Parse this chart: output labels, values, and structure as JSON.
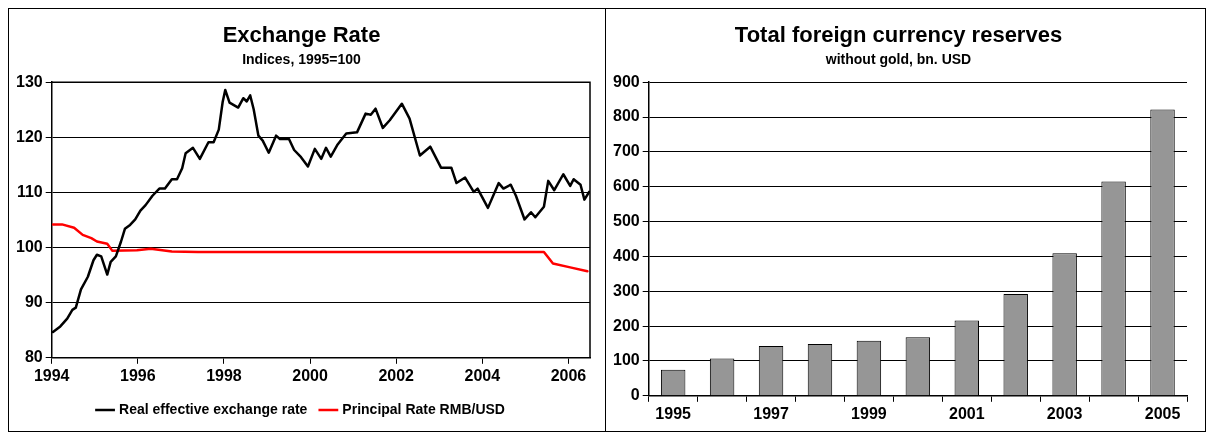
{
  "chart_data": [
    {
      "type": "line",
      "title": "Exchange Rate",
      "subtitle": "Indices, 1995=100",
      "xlim": [
        1994,
        2006.5
      ],
      "xticks": [
        1994,
        1996,
        1998,
        2000,
        2002,
        2004,
        2006
      ],
      "ylim": [
        80,
        130
      ],
      "yticks": [
        80,
        90,
        100,
        110,
        120,
        130
      ],
      "grid": "y",
      "legend": "bottom",
      "marker": "none",
      "line_style": "solid",
      "series": [
        {
          "name": "Real effective exchange rate",
          "color": "#000000",
          "x": [
            1994.03,
            1994.2,
            1994.36,
            1994.48,
            1994.56,
            1994.68,
            1994.84,
            1994.97,
            1995.05,
            1995.15,
            1995.29,
            1995.37,
            1995.49,
            1995.61,
            1995.7,
            1995.82,
            1995.94,
            1996.06,
            1996.18,
            1996.34,
            1996.5,
            1996.63,
            1996.79,
            1996.91,
            1997.03,
            1997.11,
            1997.28,
            1997.44,
            1997.64,
            1997.76,
            1997.88,
            1997.97,
            1998.03,
            1998.13,
            1998.33,
            1998.45,
            1998.53,
            1998.61,
            1998.69,
            1998.8,
            1998.9,
            1999.04,
            1999.21,
            1999.3,
            1999.51,
            1999.63,
            1999.79,
            1999.95,
            2000.11,
            2000.26,
            2000.37,
            2000.48,
            2000.64,
            2000.84,
            2001.09,
            2001.29,
            2001.41,
            2001.52,
            2001.69,
            2001.85,
            2002.13,
            2002.31,
            2002.55,
            2002.79,
            2003.04,
            2003.28,
            2003.4,
            2003.6,
            2003.8,
            2003.89,
            2004.13,
            2004.38,
            2004.49,
            2004.66,
            2004.78,
            2004.98,
            2005.13,
            2005.23,
            2005.43,
            2005.53,
            2005.67,
            2005.88,
            2006.04,
            2006.12,
            2006.28,
            2006.37,
            2006.48
          ],
          "values": [
            84.7,
            85.7,
            87.1,
            88.7,
            89.1,
            92.4,
            94.7,
            97.7,
            98.7,
            98.4,
            95.1,
            97.4,
            98.4,
            101.1,
            103.4,
            104.1,
            105.1,
            106.7,
            107.7,
            109.4,
            110.7,
            110.7,
            112.4,
            112.4,
            114.4,
            117.1,
            118.1,
            116.1,
            119.1,
            119.1,
            121.4,
            126.4,
            128.6,
            126.3,
            125.4,
            127.1,
            126.5,
            127.6,
            125.1,
            120.3,
            119.4,
            117.2,
            120.3,
            119.7,
            119.7,
            117.7,
            116.4,
            114.7,
            117.9,
            116.1,
            118.1,
            116.5,
            118.7,
            120.7,
            120.9,
            124.3,
            124.1,
            125.2,
            121.7,
            123.1,
            126.1,
            123.4,
            116.7,
            118.3,
            114.5,
            114.5,
            111.7,
            112.7,
            110.1,
            110.7,
            107.2,
            111.7,
            110.7,
            111.4,
            109.4,
            105.1,
            106.4,
            105.5,
            107.4,
            112.1,
            110.4,
            113.3,
            111.2,
            112.4,
            111.4,
            108.7,
            110.1
          ]
        },
        {
          "name": "Principal Rate RMB/USD",
          "color": "#ff0000",
          "x": [
            1994.03,
            1994.24,
            1994.52,
            1994.72,
            1994.92,
            1995.05,
            1995.29,
            1995.41,
            1995.98,
            1996.3,
            1996.79,
            1997.4,
            2005.43,
            2005.64,
            2006.04,
            2006.44
          ],
          "values": [
            104.2,
            104.2,
            103.6,
            102.3,
            101.7,
            101.1,
            100.7,
            99.4,
            99.5,
            99.8,
            99.3,
            99.2,
            99.2,
            97.1,
            96.4,
            95.7
          ]
        }
      ]
    },
    {
      "type": "bar",
      "title": "Total foreign currency reserves",
      "subtitle": "without gold, bn. USD",
      "categories": [
        "1995",
        null,
        "1997",
        null,
        "1999",
        null,
        "2001",
        null,
        "2003",
        null,
        "2005"
      ],
      "values": [
        75,
        107,
        143,
        149,
        158,
        168,
        216,
        292,
        409,
        615,
        822
      ],
      "color": "#969696",
      "ylim": [
        0,
        900
      ],
      "yticks": [
        0,
        100,
        200,
        300,
        400,
        500,
        600,
        700,
        800,
        900
      ],
      "grid": "y",
      "legend": false
    }
  ]
}
